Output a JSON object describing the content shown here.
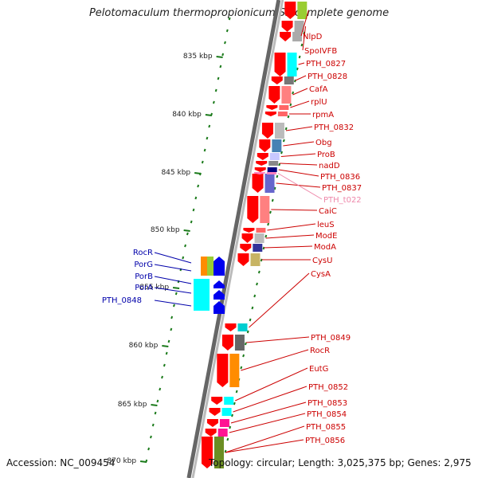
{
  "title": "Pelotomaculum thermopropionicum SI, complete genome",
  "footer": {
    "accession": "Accession: NC_009454",
    "summary": "Topology: circular; Length: 3,025,375 bp; Genes: 2,975"
  },
  "colors": {
    "backbone_dark": "#666666",
    "backbone_light": "#bbbbbb",
    "scale_tick": "#1a7a1a",
    "forward_gene": "#ff0000",
    "reverse_gene": "#0000ee",
    "forward_label": "#cc0000",
    "reverse_label": "#0000aa",
    "trna_label": "#ee88aa"
  },
  "scale_labels": [
    {
      "text": "835 kbp",
      "kbp": 835
    },
    {
      "text": "840 kbp",
      "kbp": 840
    },
    {
      "text": "845 kbp",
      "kbp": 845
    },
    {
      "text": "850 kbp",
      "kbp": 850
    },
    {
      "text": "855 kbp",
      "kbp": 855
    },
    {
      "text": "860 kbp",
      "kbp": 860
    },
    {
      "text": "865 kbp",
      "kbp": 865
    },
    {
      "text": "870 kbp",
      "kbp": 870
    }
  ],
  "forward_genes": [
    {
      "label": "NlpD",
      "cog_color": "#9acd32"
    },
    {
      "label": "SpoIVFB",
      "cog_color": "#aaaaaa"
    },
    {
      "label": "PTH_0827",
      "cog_color": "#00ffff"
    },
    {
      "label": "PTH_0828",
      "cog_color": "#777777"
    },
    {
      "label": "CafA",
      "cog_color": "#ff8080"
    },
    {
      "label": "rplU",
      "cog_color": "#ff6666"
    },
    {
      "label": "rpmA",
      "cog_color": "#ff6666"
    },
    {
      "label": "PTH_0832",
      "cog_color": "#bbbbbb"
    },
    {
      "label": "Obg",
      "cog_color": "#4682b4"
    },
    {
      "label": "ProB",
      "cog_color": "#c8c8ff"
    },
    {
      "label": "nadD",
      "cog_color": "#888888"
    },
    {
      "label": "PTH_0836",
      "cog_color": "#000080"
    },
    {
      "label": "PTH_0837",
      "cog_color": "#6666cc"
    },
    {
      "label": "PTH_t022",
      "cog_color": "#ff80c0",
      "trna": true
    },
    {
      "label": "CaiC",
      "cog_color": "#ff8080"
    },
    {
      "label": "leuS",
      "cog_color": "#ff6666"
    },
    {
      "label": "ModE",
      "cog_color": "#bbbbbb"
    },
    {
      "label": "ModA",
      "cog_color": "#333399"
    },
    {
      "label": "CysU",
      "cog_color": "#c8b464"
    },
    {
      "label": "CysA",
      "cog_color": "#00ced1"
    },
    {
      "label": "PTH_0849",
      "cog_color": "#666666"
    },
    {
      "label": "RocR",
      "cog_color": "#ff8c00"
    },
    {
      "label": "EutG",
      "cog_color": "#00ffff"
    },
    {
      "label": "PTH_0852",
      "cog_color": "#00ffff"
    },
    {
      "label": "PTH_0853",
      "cog_color": "#ff1493"
    },
    {
      "label": "PTH_0854",
      "cog_color": "#ff1493"
    },
    {
      "label": "PTH_0855",
      "cog_color": "#6b8e23"
    },
    {
      "label": "PTH_0856",
      "cog_color": "#bbbbbb"
    }
  ],
  "reverse_genes": [
    {
      "label": "RocR",
      "cog_color": "#ff8c00"
    },
    {
      "label": "PorG",
      "cog_color": "#00aa55"
    },
    {
      "label": "PorB",
      "cog_color": "#00ffff"
    },
    {
      "label": "PorA",
      "cog_color": "#00ffff"
    },
    {
      "label": "PTH_0848",
      "cog_color": "#00ffff"
    }
  ]
}
